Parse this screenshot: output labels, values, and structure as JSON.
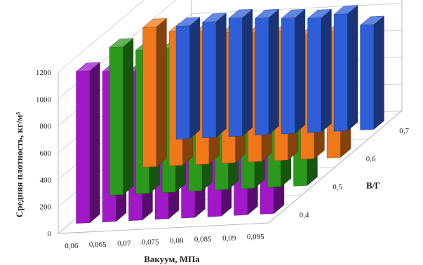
{
  "chart_data": {
    "type": "bar",
    "style": "3d-grouped-columns",
    "title": "",
    "xlabel": "Вакуум, МПа",
    "ylabel": "Средняя плотность, кг/м³",
    "zlabel": "В/Г",
    "categories": [
      "0,06",
      "0,065",
      "0,07",
      "0,075",
      "0,08",
      "0,085",
      "0,09",
      "0,095"
    ],
    "yticks": [
      "0",
      "200",
      "400",
      "600",
      "800",
      "1000",
      "1200"
    ],
    "ylim": [
      0,
      1200
    ],
    "grid": true,
    "series": [
      {
        "name": "0,7",
        "color": "#2e5fd8",
        "values": [
          840,
          860,
          880,
          870,
          860,
          850,
          870,
          780
        ]
      },
      {
        "name": "0,6",
        "color": "#f07818",
        "values": [
          1040,
          1000,
          990,
          970,
          960,
          960,
          930,
          940
        ]
      },
      {
        "name": "0,5",
        "color": "#2b9a1c",
        "values": [
          1100,
          1070,
          1070,
          1030,
          1020,
          1020,
          990,
          980
        ]
      },
      {
        "name": "0,4",
        "color": "#a018c8",
        "values": [
          1130,
          1120,
          1110,
          1090,
          1070,
          1060,
          1050,
          1040
        ]
      }
    ]
  }
}
